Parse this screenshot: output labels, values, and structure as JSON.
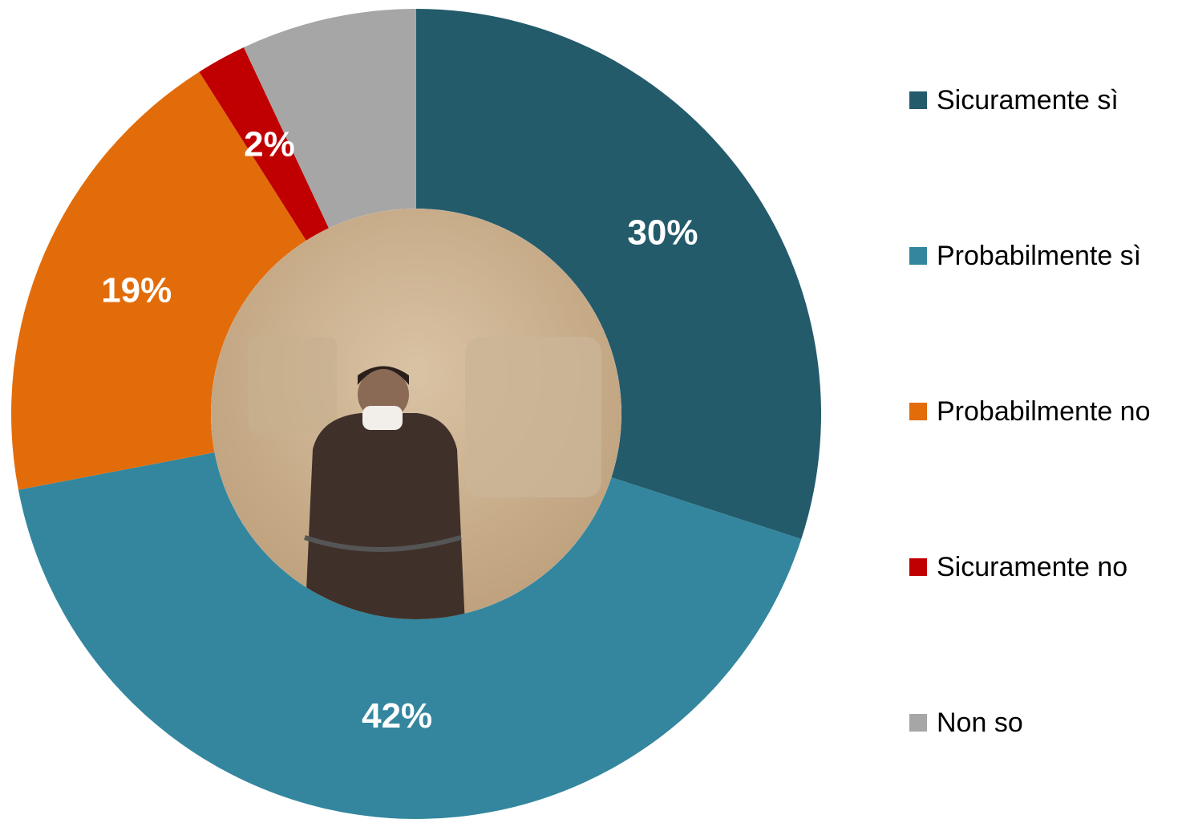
{
  "chart_data": {
    "type": "donut",
    "categories": [
      "Sicuramente sì",
      "Probabilmente sì",
      "Probabilmente no",
      "Sicuramente no",
      "Non so"
    ],
    "values": [
      30,
      42,
      19,
      2,
      7
    ],
    "value_labels": [
      "30%",
      "42%",
      "19%",
      "2%",
      null
    ],
    "colors": [
      "#235b6b",
      "#33869e",
      "#e36c0a",
      "#c00000",
      "#a6a6a6"
    ]
  }
}
